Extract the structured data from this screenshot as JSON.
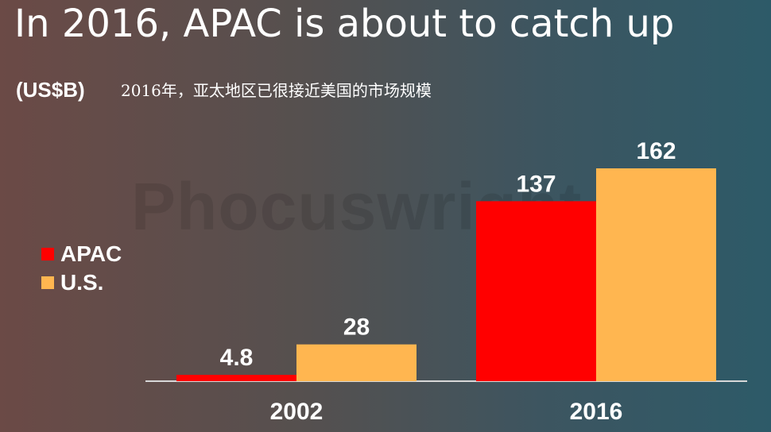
{
  "slide": {
    "title": "In 2016, APAC is about to catch up",
    "unit": "(US$B)",
    "subtitle": "2016年，亚太地区已很接近美国的市场规模",
    "watermark": "Phocuswright"
  },
  "colors": {
    "apac": "#ff0000",
    "us": "#ffb650",
    "axis": "#d8d8d8",
    "text": "#ffffff"
  },
  "chart_data": {
    "type": "bar",
    "categories": [
      "2002",
      "2016"
    ],
    "series": [
      {
        "name": "APAC",
        "values": [
          4.8,
          137
        ],
        "labels": [
          "4.8",
          "137"
        ]
      },
      {
        "name": "U.S.",
        "values": [
          28,
          162
        ],
        "labels": [
          "28",
          "162"
        ]
      }
    ],
    "ylim": [
      0,
      162
    ],
    "legend": "left",
    "grid": false
  }
}
